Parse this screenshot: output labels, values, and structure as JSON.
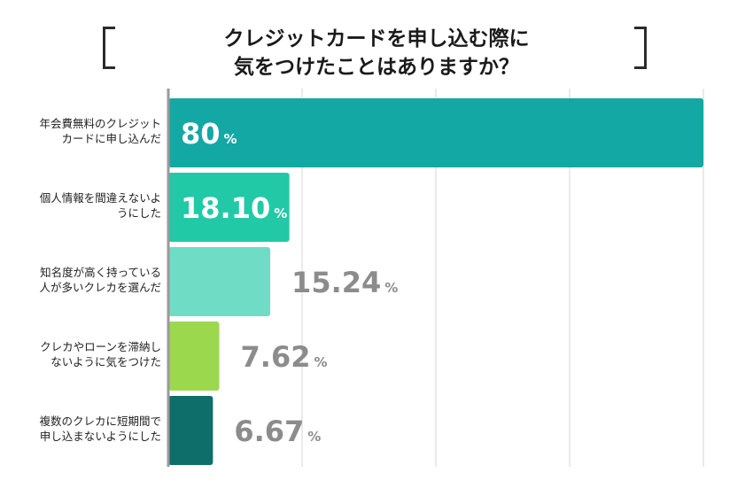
{
  "title_lines": [
    "クレジットカードを申し込む際に",
    "気をつけたことはありますか？"
  ],
  "chart_data": {
    "type": "bar",
    "orientation": "horizontal",
    "title": "クレジットカードを申し込む際に気をつけたことはありますか？",
    "categories": [
      [
        "年会費無料のクレジット",
        "カードに申し込んだ"
      ],
      [
        "個人情報を間違えないよ",
        "うにした"
      ],
      [
        "知名度が高く持っている",
        "人が多いクレカを選んだ"
      ],
      [
        "クレカやローンを滞納し",
        "ないように気をつけた"
      ],
      [
        "複数のクレカに短期間で",
        "申し込まないようにした"
      ]
    ],
    "values": [
      80,
      18.1,
      15.24,
      7.62,
      6.67
    ],
    "value_labels": [
      "80",
      "18.10",
      "15.24",
      "7.62",
      "6.67"
    ],
    "unit": "%",
    "xlim": [
      0,
      80
    ],
    "grid": true,
    "colors": [
      "#13a8a4",
      "#22c9a6",
      "#6fdcc6",
      "#9bd84e",
      "#0e6e6a"
    ],
    "label_colors_outside": "#8c8c8c",
    "label_colors_inside": "#ffffff",
    "axis_color": "#9a9a9a",
    "grid_color": "#d6d6d6"
  }
}
